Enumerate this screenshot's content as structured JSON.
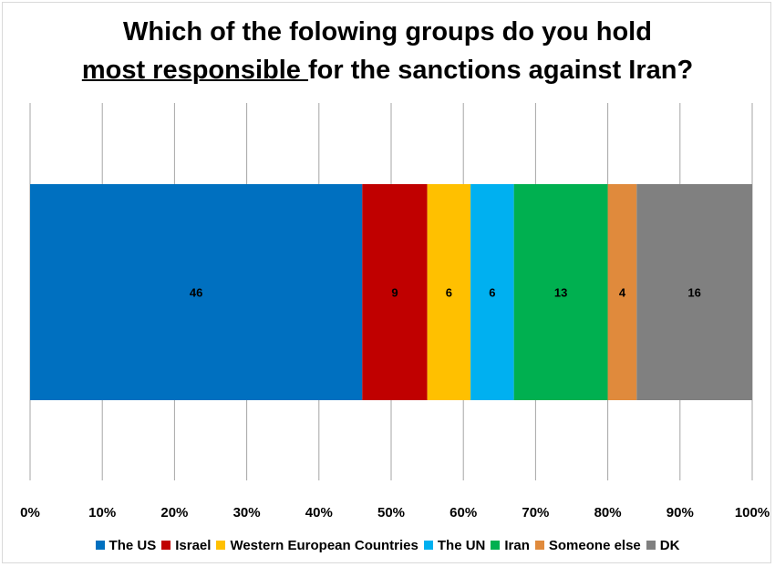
{
  "title": {
    "line1": "Which of the folowing groups do you hold",
    "line2_underlined": "most responsible ",
    "line2_rest": "for the sanctions against Iran?"
  },
  "chart_data": {
    "type": "bar",
    "orientation": "horizontal",
    "stacked": true,
    "categories": [
      ""
    ],
    "series": [
      {
        "name": "The US",
        "values": [
          46
        ],
        "color": "#0070c0"
      },
      {
        "name": "Israel",
        "values": [
          9
        ],
        "color": "#c00000"
      },
      {
        "name": "Western European Countries",
        "values": [
          6
        ],
        "color": "#ffc000"
      },
      {
        "name": "The UN",
        "values": [
          6
        ],
        "color": "#00b0f0"
      },
      {
        "name": "Iran",
        "values": [
          13
        ],
        "color": "#00b050"
      },
      {
        "name": "Someone else",
        "values": [
          4
        ],
        "color": "#e08a3c"
      },
      {
        "name": "DK",
        "values": [
          16
        ],
        "color": "#808080"
      }
    ],
    "xlim": [
      0,
      100
    ],
    "x_ticks": [
      "0%",
      "10%",
      "20%",
      "30%",
      "40%",
      "50%",
      "60%",
      "70%",
      "80%",
      "90%",
      "100%"
    ],
    "grid": "vertical",
    "legend_position": "bottom"
  }
}
